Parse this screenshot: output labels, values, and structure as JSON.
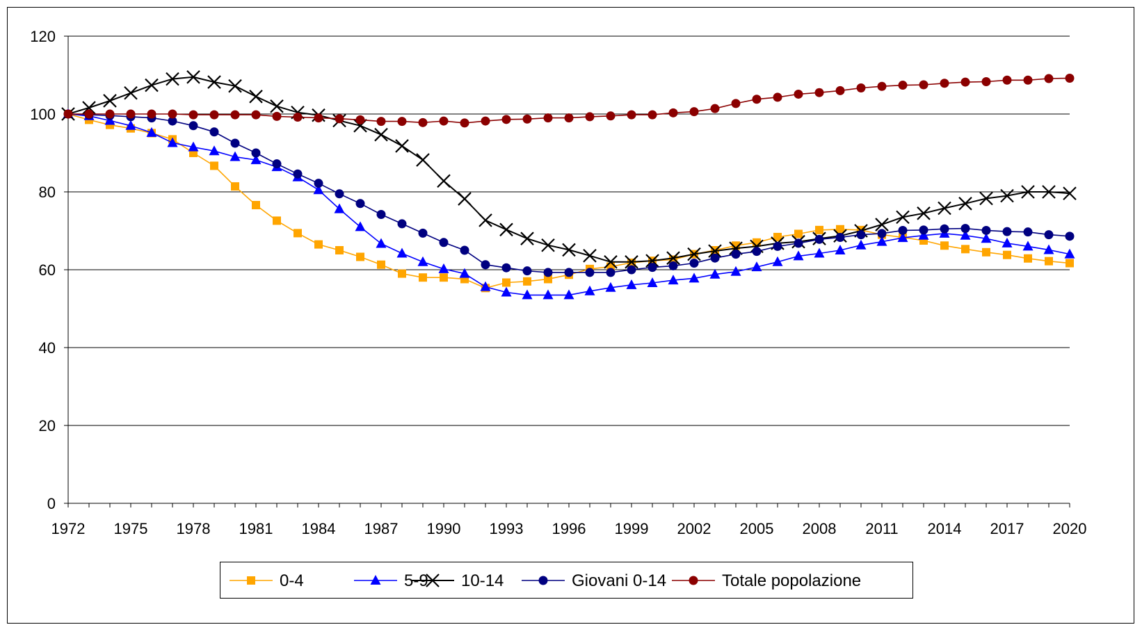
{
  "chart_data": {
    "type": "line",
    "title": "",
    "xlabel": "",
    "ylabel": "",
    "ylim": [
      0,
      120
    ],
    "yticks": [
      "0",
      "20",
      "40",
      "60",
      "80",
      "100",
      "120"
    ],
    "grid": "horizontal",
    "legend_position": "bottom",
    "x_tick_labels": [
      "1972",
      "1975",
      "1978",
      "1981",
      "1984",
      "1987",
      "1990",
      "1993",
      "1996",
      "1999",
      "2002",
      "2005",
      "2008",
      "2011",
      "2014",
      "2017",
      "2020"
    ],
    "x": [
      1972,
      1973,
      1974,
      1975,
      1976,
      1977,
      1978,
      1979,
      1980,
      1981,
      1982,
      1983,
      1984,
      1985,
      1986,
      1987,
      1988,
      1989,
      1990,
      1991,
      1992,
      1993,
      1994,
      1995,
      1996,
      1997,
      1998,
      1999,
      2000,
      2001,
      2002,
      2003,
      2004,
      2005,
      2006,
      2007,
      2008,
      2009,
      2010,
      2011,
      2012,
      2013,
      2014,
      2015,
      2016,
      2017,
      2018,
      2019,
      2020
    ],
    "series": [
      {
        "name": "0-4",
        "color": "#FFA500",
        "marker": "square",
        "values": [
          100,
          98.5,
          97.2,
          96.3,
          95.1,
          93.5,
          90,
          86.7,
          81.4,
          76.6,
          72.6,
          69.4,
          66.5,
          65,
          63.3,
          61.3,
          59,
          58,
          58,
          57.6,
          55.3,
          56.7,
          57,
          57.6,
          58.7,
          60.2,
          60.8,
          61.8,
          62.3,
          62.6,
          64,
          65,
          66.2,
          67,
          68.4,
          69.2,
          70.2,
          70.4,
          70.2,
          69,
          68.3,
          67.5,
          66.2,
          65.3,
          64.5,
          63.8,
          62.9,
          62.2,
          61.7
        ]
      },
      {
        "name": "5-9",
        "color": "#0000FF",
        "marker": "triangle",
        "values": [
          100,
          99.5,
          98.3,
          97,
          95.2,
          92.6,
          91.5,
          90.5,
          89,
          88.2,
          86.4,
          83.8,
          80.5,
          75.6,
          71,
          66.7,
          64.2,
          62,
          60.2,
          59,
          55.6,
          54.2,
          53.5,
          53.5,
          53.5,
          54.5,
          55.4,
          56.1,
          56.6,
          57.3,
          57.8,
          58.8,
          59.5,
          60.7,
          62,
          63.5,
          64.2,
          65,
          66.3,
          67.2,
          68.2,
          68.8,
          69.3,
          68.8,
          68,
          66.8,
          66,
          65.1,
          64
        ]
      },
      {
        "name": "10-14",
        "color": "#000000",
        "marker": "x",
        "values": [
          100,
          101.6,
          103.4,
          105.4,
          107.4,
          109,
          109.5,
          108.2,
          107.2,
          104.5,
          102,
          100.4,
          99.7,
          98.3,
          97,
          94.7,
          91.8,
          88.2,
          82.8,
          78.2,
          72.7,
          70.3,
          68,
          66.3,
          65.1,
          63.6,
          62,
          62,
          62.3,
          63,
          64,
          64.8,
          65.5,
          66,
          66.8,
          67.2,
          68,
          68.7,
          70,
          71.6,
          73.5,
          74.5,
          75.8,
          77,
          78.3,
          79,
          80,
          80,
          79.6
        ]
      },
      {
        "name": "Giovani 0-14",
        "color": "#000080",
        "marker": "circle",
        "values": [
          100,
          99.8,
          99.6,
          99.3,
          99,
          98.2,
          97,
          95.4,
          92.5,
          90,
          87.2,
          84.6,
          82.2,
          79.5,
          77,
          74.2,
          71.8,
          69.4,
          67,
          65,
          61.3,
          60.5,
          59.7,
          59.3,
          59.3,
          59.3,
          59.3,
          60,
          60.6,
          61,
          61.7,
          63,
          64,
          64.7,
          66,
          66.8,
          67.8,
          68.3,
          69,
          69.3,
          70.1,
          70.2,
          70.5,
          70.6,
          70.1,
          69.8,
          69.7,
          69,
          68.6
        ]
      },
      {
        "name": "Totale popolazione",
        "color": "#8B0000",
        "marker": "circle",
        "values": [
          100,
          100,
          100,
          100,
          100,
          100,
          99.8,
          99.8,
          99.8,
          99.8,
          99.4,
          99.2,
          99,
          98.8,
          98.5,
          98.1,
          98.1,
          97.8,
          98.2,
          97.7,
          98.2,
          98.6,
          98.7,
          99,
          99,
          99.3,
          99.5,
          99.8,
          99.8,
          100.3,
          100.6,
          101.4,
          102.7,
          103.8,
          104.3,
          105.1,
          105.5,
          106,
          106.7,
          107.1,
          107.4,
          107.5,
          107.9,
          108.2,
          108.3,
          108.7,
          108.7,
          109.1,
          109.2
        ]
      }
    ]
  }
}
